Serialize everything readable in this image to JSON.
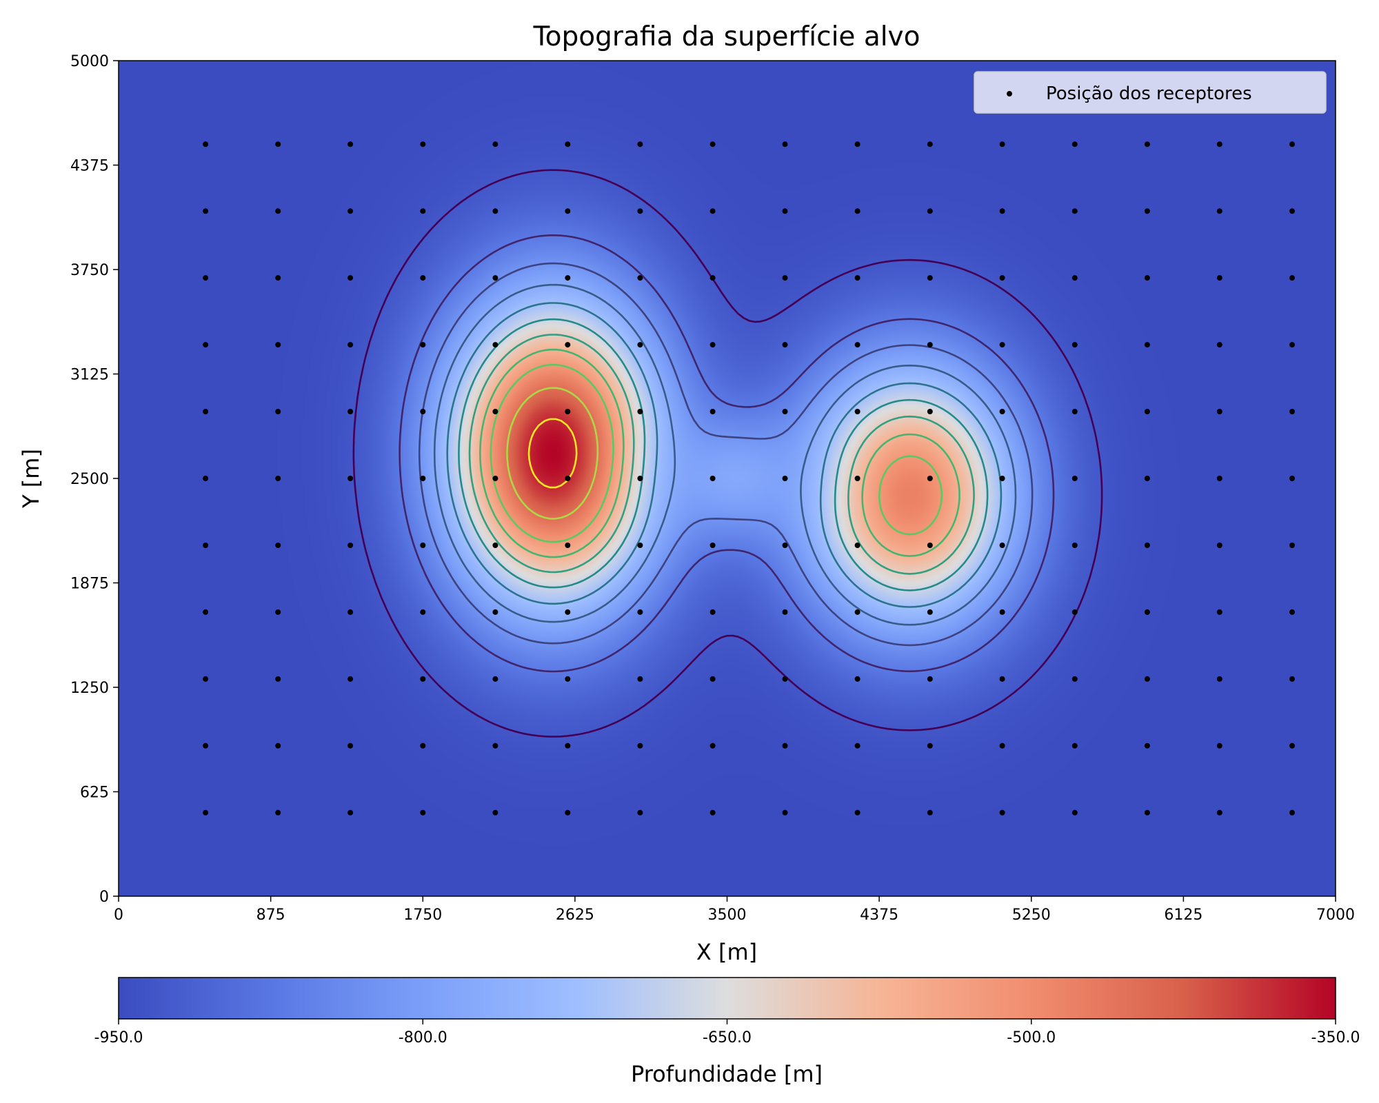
{
  "chart_data": {
    "type": "heatmap",
    "title": "Topografia da superfície alvo",
    "xlabel": "X [m]",
    "ylabel": "Y [m]",
    "xlim": [
      0,
      7000
    ],
    "ylim": [
      0,
      5000
    ],
    "x_ticks": [
      "0",
      "875",
      "1750",
      "2625",
      "3500",
      "4375",
      "5250",
      "6125",
      "7000"
    ],
    "y_ticks": [
      "0",
      "625",
      "1250",
      "1875",
      "2500",
      "3125",
      "3750",
      "4375",
      "5000"
    ],
    "colormap": "coolwarm",
    "colorbar": {
      "label": "Profundidade [m]",
      "range": [
        -950,
        -350
      ],
      "ticks": [
        "-950.0",
        "-800.0",
        "-650.0",
        "-500.0",
        "-350.0"
      ],
      "tick_values": [
        -950,
        -800,
        -650,
        -500,
        -350
      ]
    },
    "grid": false,
    "legend": {
      "position": "top-right",
      "entries": [
        {
          "label": "Posição dos receptores",
          "marker": "dot",
          "color": "#000000"
        }
      ]
    },
    "surface": {
      "base_depth": -950,
      "features": [
        {
          "kind": "peak",
          "x": 2500,
          "y": 2650,
          "sx": 440,
          "sy": 650,
          "peak_depth": -350
        },
        {
          "kind": "peak",
          "x": 4550,
          "y": 2400,
          "sx": 440,
          "sy": 560,
          "peak_depth": -480
        },
        {
          "kind": "saddle",
          "x": 3550,
          "y": 2500,
          "sx": 300,
          "sy": 250,
          "depth": -760
        }
      ]
    },
    "contour_levels": [
      -930,
      -870,
      -820,
      -770,
      -720,
      -670,
      -620,
      -570,
      -520,
      -450,
      -380
    ],
    "receivers": {
      "x": [
        500,
        917,
        1333,
        1750,
        2167,
        2583,
        3000,
        3417,
        3833,
        4250,
        4667,
        5083,
        5500,
        5917,
        6333,
        6750
      ],
      "y": [
        500,
        900,
        1300,
        1700,
        2100,
        2500,
        2900,
        3300,
        3700,
        4100,
        4500
      ]
    }
  }
}
